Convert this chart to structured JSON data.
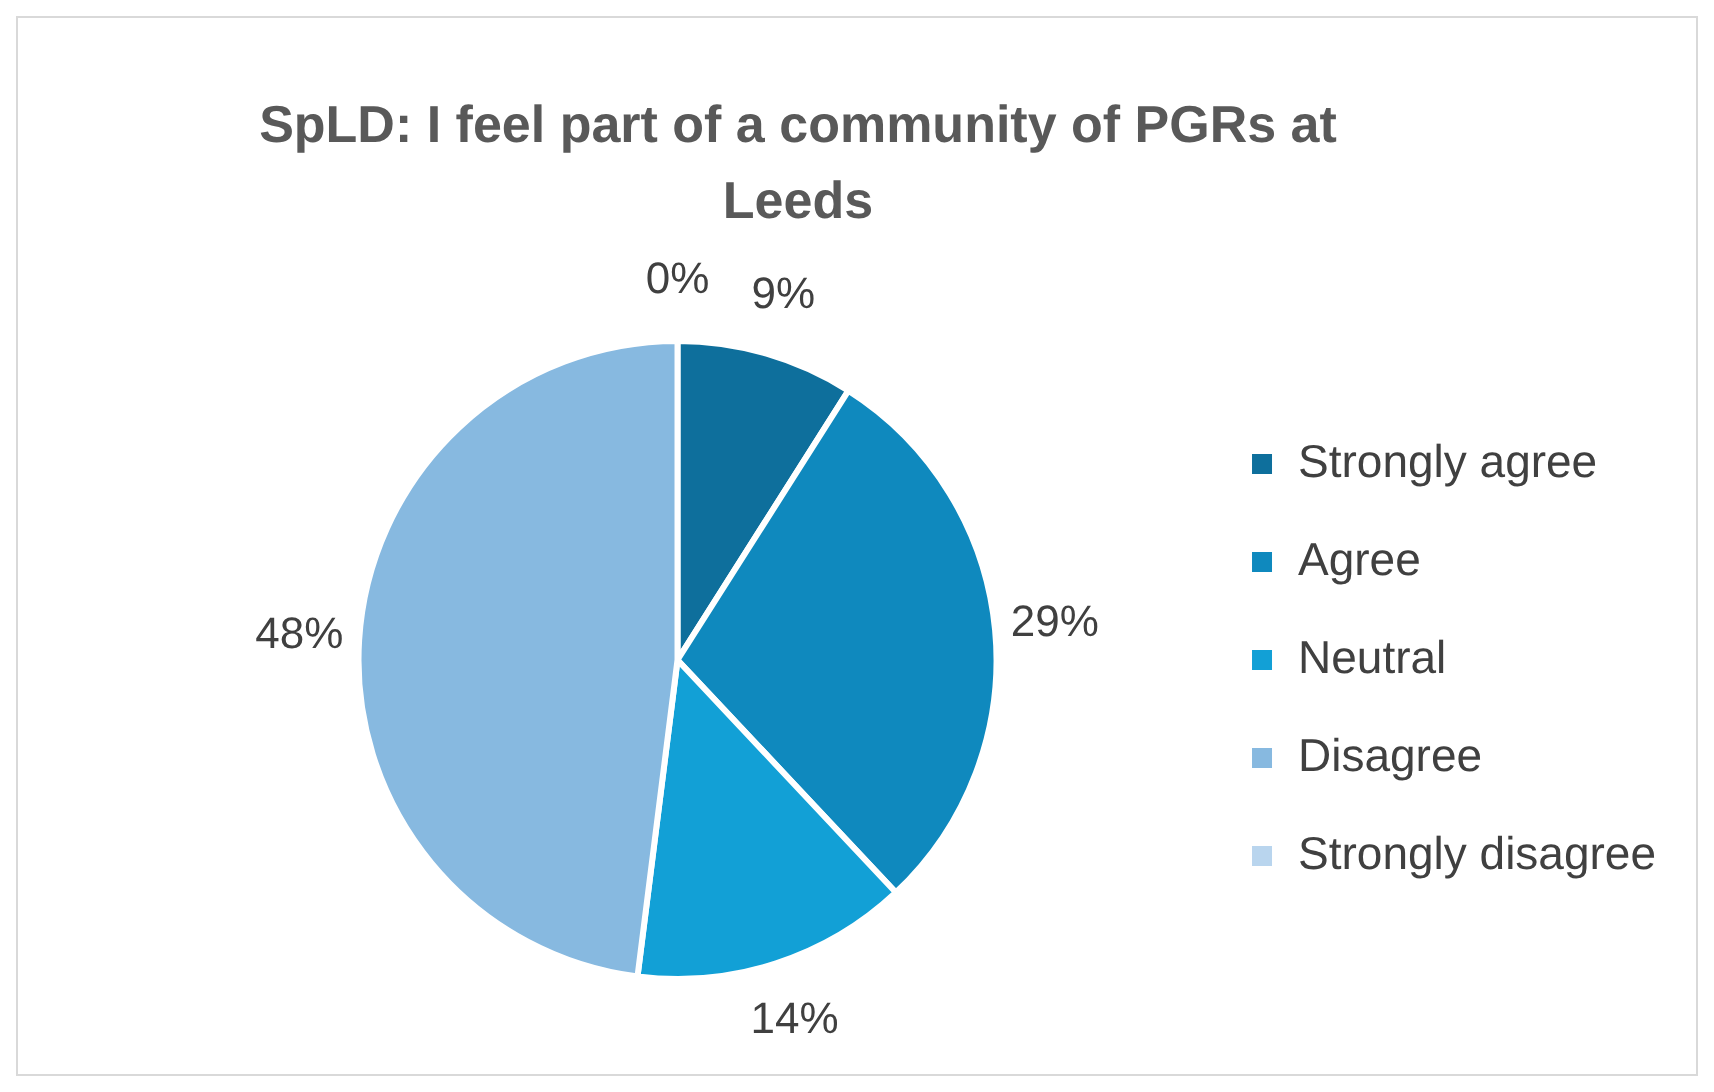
{
  "chart_data": {
    "type": "pie",
    "title": "SpLD: I feel part of a community of PGRs at Leeds",
    "categories": [
      "Strongly agree",
      "Agree",
      "Neutral",
      "Disagree",
      "Strongly disagree"
    ],
    "values": [
      9,
      29,
      14,
      48,
      0
    ],
    "value_labels": [
      "9%",
      "29%",
      "14%",
      "48%",
      "0%"
    ],
    "colors": [
      "#0e6f9c",
      "#0f89be",
      "#12a0d6",
      "#87b9e0",
      "#b9d5ee"
    ],
    "legend": "right"
  }
}
